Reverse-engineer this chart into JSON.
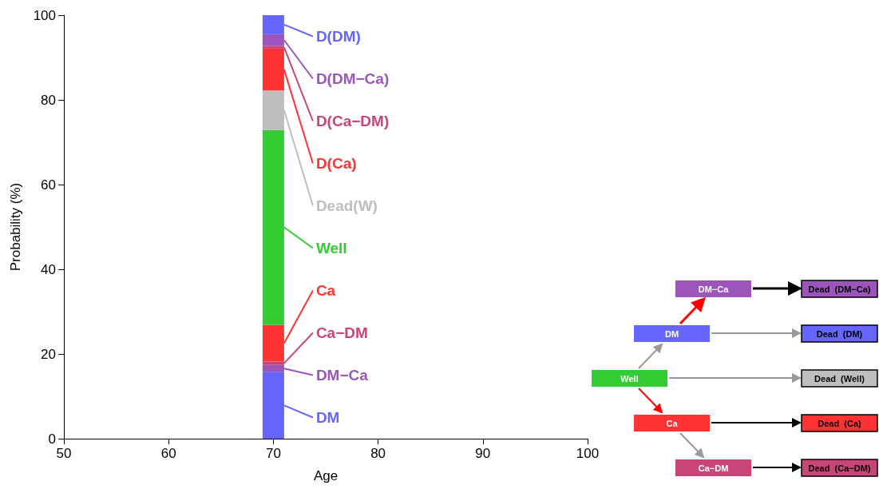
{
  "chart_data": {
    "type": "bar",
    "stacked": true,
    "x": [
      70
    ],
    "xlim": [
      50,
      100
    ],
    "xticks": [
      50,
      60,
      70,
      80,
      90,
      100
    ],
    "ylim": [
      0,
      100
    ],
    "yticks": [
      0,
      20,
      40,
      60,
      80,
      100
    ],
    "xlabel": "Age",
    "ylabel": "Probability (%)",
    "legend": "right",
    "series": [
      {
        "name": "DM",
        "color": "#6666ff",
        "values": [
          15.7
        ]
      },
      {
        "name": "DM−Ca",
        "color": "#9b55bb",
        "values": [
          1.7
        ]
      },
      {
        "name": "Ca−DM",
        "color": "#c94477",
        "values": [
          0.8
        ]
      },
      {
        "name": "Ca",
        "color": "#ff3333",
        "values": [
          8.7
        ]
      },
      {
        "name": "Well",
        "color": "#33cc33",
        "values": [
          46.0
        ]
      },
      {
        "name": "Dead(W)",
        "color": "#bebebe",
        "values": [
          9.3
        ]
      },
      {
        "name": "D(Ca)",
        "color": "#ff3333",
        "values": [
          9.9
        ]
      },
      {
        "name": "D(Ca−DM)",
        "color": "#c94477",
        "values": [
          0.6
        ]
      },
      {
        "name": "D(DM−Ca)",
        "color": "#9b55bb",
        "values": [
          2.8
        ]
      },
      {
        "name": "D(DM)",
        "color": "#6666ff",
        "values": [
          4.5
        ]
      }
    ],
    "annotations": [
      "DM−Ca",
      "DM",
      "Well",
      "Ca",
      "Ca−DM",
      "Dead  (DM−Ca)",
      "Dead  (DM)",
      "Dead  (Well)",
      "Dead  (Ca)",
      "Dead  (Ca−DM)"
    ]
  }
}
